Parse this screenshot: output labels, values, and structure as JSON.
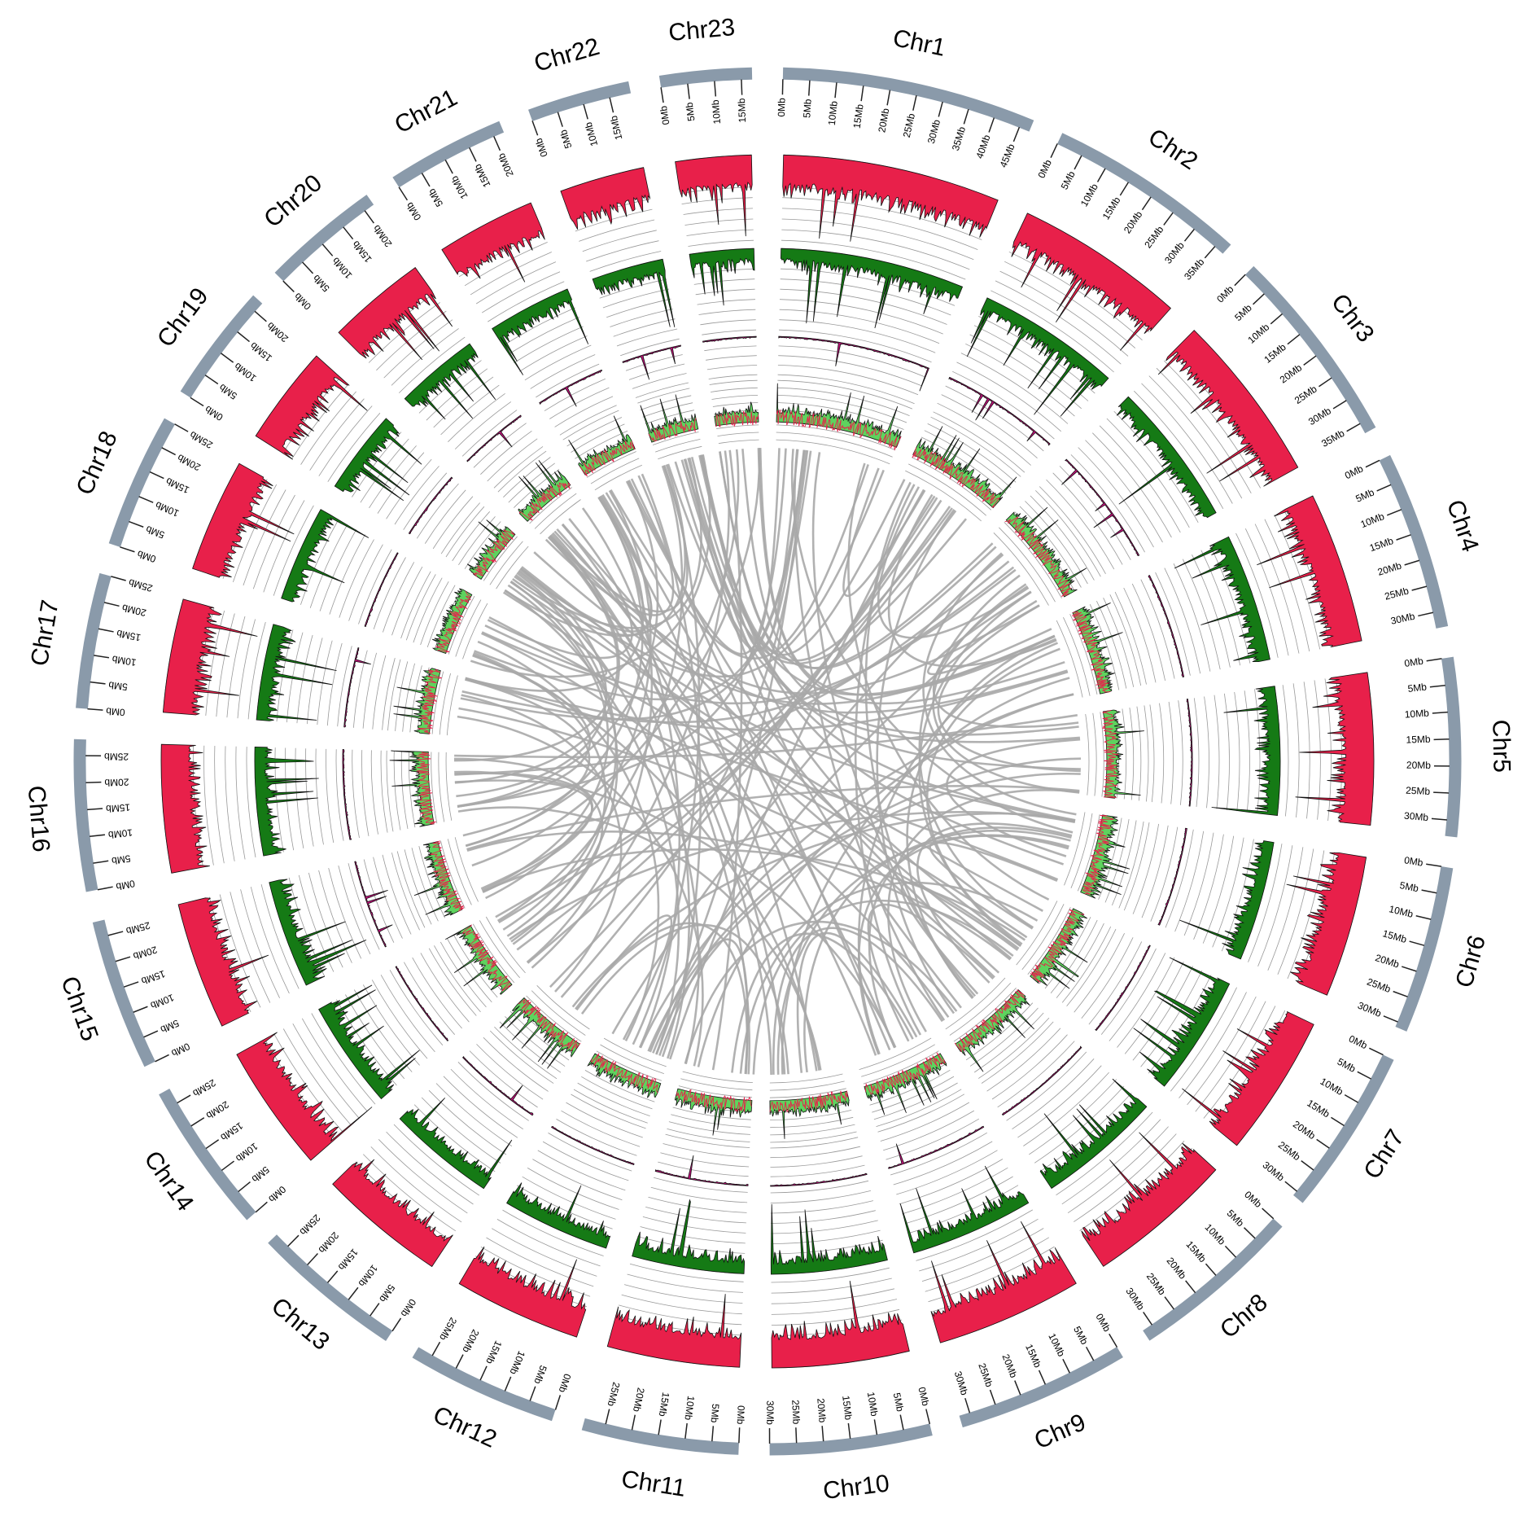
{
  "figure": {
    "chromosomes": [
      {
        "name": "Chr1",
        "length_mb": 47
      },
      {
        "name": "Chr2",
        "length_mb": 37
      },
      {
        "name": "Chr3",
        "length_mb": 37
      },
      {
        "name": "Chr4",
        "length_mb": 33
      },
      {
        "name": "Chr5",
        "length_mb": 33
      },
      {
        "name": "Chr6",
        "length_mb": 31
      },
      {
        "name": "Chr7",
        "length_mb": 31
      },
      {
        "name": "Chr8",
        "length_mb": 32
      },
      {
        "name": "Chr9",
        "length_mb": 32
      },
      {
        "name": "Chr10",
        "length_mb": 30
      },
      {
        "name": "Chr11",
        "length_mb": 29
      },
      {
        "name": "Chr12",
        "length_mb": 28
      },
      {
        "name": "Chr13",
        "length_mb": 28
      },
      {
        "name": "Chr14",
        "length_mb": 28
      },
      {
        "name": "Chr15",
        "length_mb": 28
      },
      {
        "name": "Chr16",
        "length_mb": 28
      },
      {
        "name": "Chr17",
        "length_mb": 25
      },
      {
        "name": "Chr18",
        "length_mb": 25
      },
      {
        "name": "Chr19",
        "length_mb": 22
      },
      {
        "name": "Chr20",
        "length_mb": 22
      },
      {
        "name": "Chr21",
        "length_mb": 22
      },
      {
        "name": "Chr22",
        "length_mb": 19
      },
      {
        "name": "Chr23",
        "length_mb": 17
      }
    ],
    "tick_step_mb": 5,
    "tick_unit": "Mb",
    "colors": {
      "ideogram": "#8a9aaa",
      "track_red": "#e8204a",
      "track_green": "#157a15",
      "track_magenta": "#c0107a",
      "track_lightgreen": "#5ed35e",
      "links": "#a9a9a9",
      "grid": "#555555"
    }
  }
}
